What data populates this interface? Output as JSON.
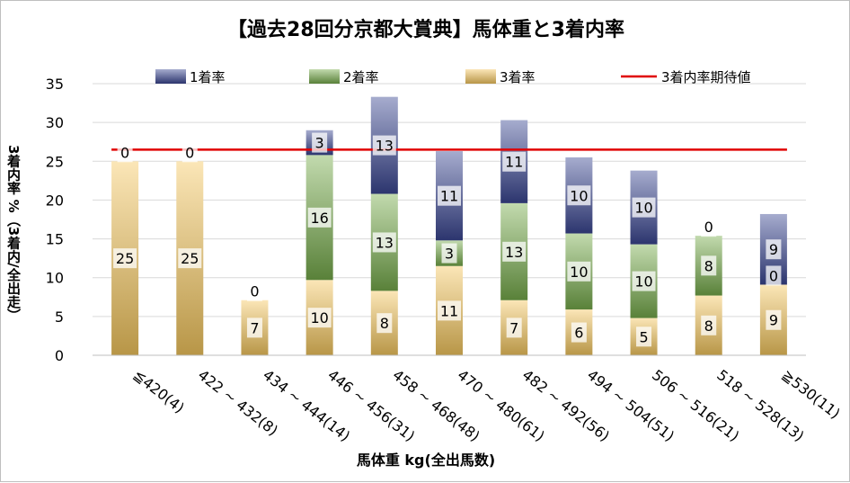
{
  "chart_data": {
    "type": "bar",
    "stacked": true,
    "title": "【過去28回分京都大賞典】馬体重と3着内率",
    "xlabel": "馬体重 kg(全出馬数)",
    "ylabel": "3着内率 %（3着内/全出走）",
    "ylim": [
      0,
      35
    ],
    "yticks": [
      0,
      5,
      10,
      15,
      20,
      25,
      30,
      35
    ],
    "grid": true,
    "legend_position": "top",
    "categories": [
      "≦420(4)",
      "422 ~ 432(8)",
      "434 ~ 444(14)",
      "446 ~ 456(31)",
      "458 ~ 468(48)",
      "470 ~ 480(61)",
      "482 ~ 492(56)",
      "494 ~ 504(51)",
      "506 ~ 516(21)",
      "518 ~ 528(13)",
      "≧530(11)"
    ],
    "series": [
      {
        "name": "3着率",
        "color": "#f5c85e",
        "values": [
          25,
          25,
          7.1,
          9.7,
          8.3,
          11.5,
          7.1,
          5.9,
          4.8,
          7.7,
          9.1
        ],
        "labels": [
          "25",
          "25",
          "7",
          "10",
          "8",
          "11",
          "7",
          "6",
          "5",
          "8",
          "9"
        ]
      },
      {
        "name": "2着率",
        "color": "#77ac4c",
        "values": [
          0,
          0,
          0,
          16.1,
          12.5,
          3.3,
          12.5,
          9.8,
          9.5,
          7.7,
          0
        ],
        "labels": [
          "",
          "",
          "",
          "16",
          "13",
          "3",
          "13",
          "10",
          "10",
          "8",
          "0"
        ]
      },
      {
        "name": "1着率",
        "color": "#3a4693",
        "values": [
          0,
          0,
          0,
          3.2,
          12.5,
          11.5,
          10.7,
          9.8,
          9.5,
          0,
          9.1
        ],
        "labels": [
          "0",
          "0",
          "0",
          "3",
          "13",
          "11",
          "11",
          "10",
          "10",
          "0",
          "9"
        ]
      }
    ],
    "reference_line": {
      "name": "3着内率期待値",
      "value": 26.5,
      "color": "#e00000"
    }
  },
  "legend": {
    "items": [
      "1着率",
      "2着率",
      "3着率",
      "3着内率期待値"
    ]
  }
}
